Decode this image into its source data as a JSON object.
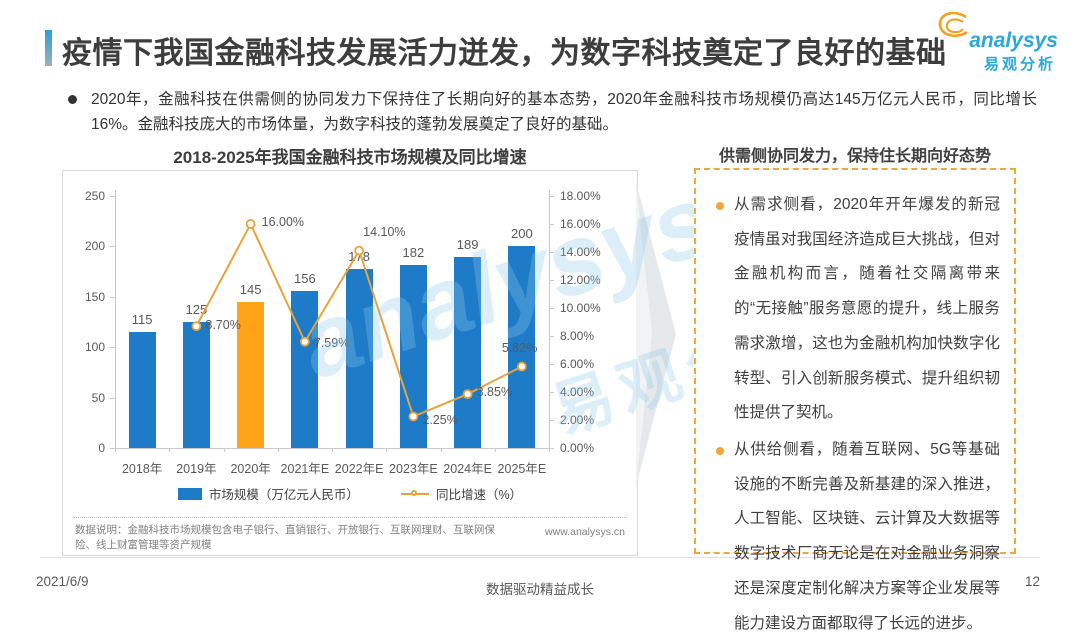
{
  "header": {
    "title": "疫情下我国金融科技发展活力迸发，为数字科技奠定了良好的基础",
    "logo": {
      "brand": "analysys",
      "brand_cn": "易观分析"
    }
  },
  "summary": {
    "bullet": "2020年，金融科技在供需侧的协同发力下保持住了长期向好的基本态势，2020年金融科技市场规模仍高达145万亿元人民币，同比增长16%。金融科技庞大的市场体量，为数字科技的蓬勃发展奠定了良好的基础。"
  },
  "chart_data": {
    "type": "bar",
    "title": "2018-2025年我国金融科技市场规模及同比增速",
    "categories": [
      "2018年",
      "2019年",
      "2020年",
      "2021年E",
      "2022年E",
      "2023年E",
      "2024年E",
      "2025年E"
    ],
    "series": [
      {
        "name": "市场规模（万亿元人民币）",
        "type": "bar",
        "values": [
          115,
          125,
          145,
          156,
          178,
          182,
          189,
          200
        ],
        "highlight_index": 2
      },
      {
        "name": "同比增速（%）",
        "type": "line",
        "values": [
          null,
          8.7,
          16.0,
          7.59,
          14.1,
          2.25,
          3.85,
          5.82
        ],
        "labels": [
          null,
          "8.70%",
          "16.00%",
          "7.59%",
          "14.10%",
          "2.25%",
          "3.85%",
          "5.82%"
        ]
      }
    ],
    "left_axis": {
      "ticks": [
        "250",
        "200",
        "150",
        "100",
        "50",
        "0"
      ],
      "max": 250,
      "min": 0
    },
    "right_axis": {
      "ticks": [
        "18.00%",
        "16.00%",
        "14.00%",
        "12.00%",
        "10.00%",
        "8.00%",
        "6.00%",
        "4.00%",
        "2.00%",
        "0.00%"
      ],
      "max": 18,
      "min": 0
    },
    "grid": false,
    "legend_position": "bottom",
    "colors": {
      "bar": "#1e7bc8",
      "bar_highlight": "#ffa319",
      "line": "#e8a33d"
    },
    "footnote": "数据说明：金融科技市场规模包含电子银行、直销银行、开放银行、互联网理财、互联网保险、线上财富管理等资产规模",
    "source_url": "www.analysys.cn"
  },
  "panel": {
    "title": "供需侧协同发力，保持住长期向好态势",
    "bullets": [
      "从需求侧看，2020年开年爆发的新冠疫情虽对我国经济造成巨大挑战，但对金融机构而言，随着社交隔离带来的“无接触”服务意愿的提升，线上服务需求激增，这也为金融机构加快数字化转型、引入创新服务模式、提升组织韧性提供了契机。",
      "从供给侧看，随着互联网、5G等基础设施的不断完善及新基建的深入推进，人工智能、区块链、云计算及大数据等数字技术厂商无论是在对金融业务洞察还是深度定制化解决方案等企业发展等能力建设方面都取得了长远的进步。"
    ]
  },
  "watermark": {
    "line1": "analysys",
    "line2": "易观分析"
  },
  "footer": {
    "date": "2021/6/9",
    "center": "数据驱动精益成长",
    "page": "12"
  }
}
